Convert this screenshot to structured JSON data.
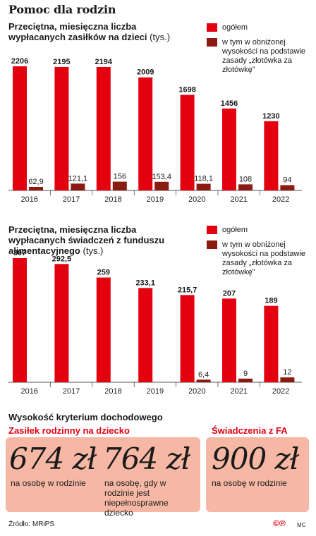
{
  "title": "Pomoc dla rodzin",
  "colors": {
    "total": "#e3000f",
    "reduced": "#8b1a10",
    "box_bg": "#f6b8a4",
    "heading_red": "#e3000f"
  },
  "chart_data": [
    {
      "type": "bar",
      "title": "Przeciętna, miesięczna liczba wypłacanych zasiłków na dzieci",
      "title_unit": "(tys.)",
      "categories": [
        "2016",
        "2017",
        "2018",
        "2019",
        "2020",
        "2021",
        "2022"
      ],
      "series": [
        {
          "name": "ogółem",
          "values": [
            2206,
            2195,
            2194,
            2009,
            1698,
            1456,
            1230
          ],
          "labels": [
            "2206",
            "2195",
            "2194",
            "2009",
            "1698",
            "1456",
            "1230"
          ]
        },
        {
          "name": "w tym w obniżonej wysokości na podstawie zasady „złotówka za złotówkę”",
          "values": [
            62.9,
            121.1,
            156,
            153.4,
            118.1,
            108,
            94
          ],
          "labels": [
            "62,9",
            "121,1",
            "156",
            "153,4",
            "118,1",
            "108",
            "94"
          ]
        }
      ]
    },
    {
      "type": "bar",
      "title": "Przeciętna, miesięczna liczba wypłacanych świadczeń z funduszu alimentacyjnego",
      "title_unit": "(tys.)",
      "categories": [
        "2016",
        "2017",
        "2018",
        "2019",
        "2020",
        "2021",
        "2022"
      ],
      "series": [
        {
          "name": "ogółem",
          "values": [
            307,
            292.5,
            259,
            233.1,
            215.7,
            207,
            189
          ],
          "labels": [
            "307",
            "292,5",
            "259",
            "233,1",
            "215,7",
            "207",
            "189"
          ]
        },
        {
          "name": "w tym w obniżonej wysokości na podstawie zasady „złotówka za złotówkę”",
          "values": [
            null,
            null,
            null,
            null,
            6.4,
            9,
            12
          ],
          "labels": [
            "",
            "",
            "",
            "",
            "6,4",
            "9",
            "12"
          ]
        }
      ]
    }
  ],
  "criteria": {
    "title": "Wysokość kryterium dochodowego",
    "family": {
      "heading": "Zasiłek rodzinny na dziecko",
      "amount1": "674 zł",
      "desc1": "na osobę w rodzinie",
      "amount2": "764 zł",
      "desc2": "na osobę, gdy w rodzinie jest niepełnosprawne dziecko"
    },
    "fa": {
      "heading": "Świadczenia z FA",
      "amount": "900 zł",
      "desc": "na osobę w rodzinie"
    }
  },
  "footer": {
    "source": "Źródło: MRiPS",
    "logo": "©℗",
    "author": "MC"
  }
}
